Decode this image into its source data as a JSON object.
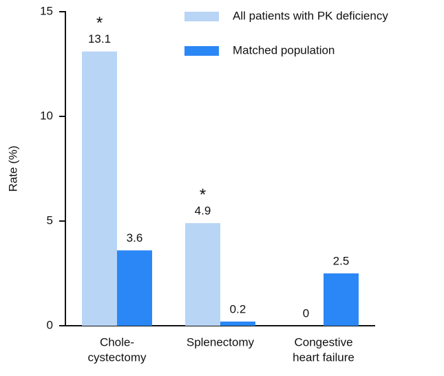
{
  "chart_data": {
    "type": "bar",
    "y_label": "Rate (%)",
    "categories": [
      [
        "Chole-",
        "cystectomy"
      ],
      [
        "Splenectomy"
      ],
      [
        "Congestive",
        "heart failure"
      ]
    ],
    "series": [
      {
        "name": "All patients with PK deficiency",
        "color": "#b8d5f5",
        "values": [
          13.1,
          4.9,
          0
        ],
        "markers": [
          "*",
          "*",
          null
        ]
      },
      {
        "name": "Matched population",
        "color": "#2b87f5",
        "values": [
          3.6,
          0.2,
          2.5
        ]
      }
    ],
    "ylim": [
      0,
      15
    ],
    "yticks": [
      0,
      5,
      10,
      15
    ],
    "legend": "top-right"
  }
}
